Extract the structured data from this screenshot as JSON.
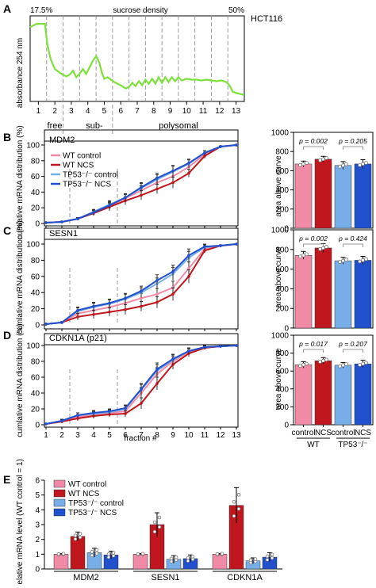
{
  "chart_data": [
    {
      "panel": "A",
      "type": "line",
      "title": "HCT116",
      "top_label_left": "17.5%",
      "top_label_mid": "sucrose density",
      "top_label_right": "50%",
      "ylabel": "absorbance 254 nm",
      "fractions": [
        "1",
        "2",
        "3",
        "4",
        "5",
        "6",
        "7",
        "8",
        "9",
        "10",
        "11",
        "12",
        "13"
      ],
      "regions": [
        "free",
        "sub-",
        "polysomal"
      ],
      "trace_color": "#7ee03a",
      "trace": [
        [
          0,
          0.92
        ],
        [
          0.4,
          0.96
        ],
        [
          0.9,
          0.96
        ],
        [
          1.05,
          0.7
        ],
        [
          1.25,
          0.52
        ],
        [
          1.5,
          0.4
        ],
        [
          1.9,
          0.34
        ],
        [
          2.2,
          0.31
        ],
        [
          2.4,
          0.33
        ],
        [
          2.6,
          0.38
        ],
        [
          2.8,
          0.3
        ],
        [
          3.0,
          0.34
        ],
        [
          3.2,
          0.4
        ],
        [
          3.4,
          0.34
        ],
        [
          3.6,
          0.42
        ],
        [
          3.8,
          0.5
        ],
        [
          4.0,
          0.56
        ],
        [
          4.2,
          0.48
        ],
        [
          4.35,
          0.36
        ],
        [
          4.5,
          0.28
        ],
        [
          4.7,
          0.3
        ],
        [
          4.9,
          0.27
        ],
        [
          5.1,
          0.24
        ],
        [
          5.3,
          0.22
        ],
        [
          5.5,
          0.2
        ],
        [
          5.8,
          0.16
        ],
        [
          6.0,
          0.18
        ],
        [
          6.2,
          0.23
        ],
        [
          6.4,
          0.19
        ],
        [
          6.6,
          0.25
        ],
        [
          6.8,
          0.2
        ],
        [
          7.0,
          0.27
        ],
        [
          7.2,
          0.22
        ],
        [
          7.4,
          0.28
        ],
        [
          7.6,
          0.22
        ],
        [
          7.8,
          0.3
        ],
        [
          8.0,
          0.23
        ],
        [
          8.2,
          0.3
        ],
        [
          8.4,
          0.24
        ],
        [
          8.6,
          0.3
        ],
        [
          8.8,
          0.25
        ],
        [
          9.0,
          0.3
        ],
        [
          9.2,
          0.26
        ],
        [
          9.5,
          0.28
        ],
        [
          9.8,
          0.27
        ],
        [
          10.1,
          0.27
        ],
        [
          10.4,
          0.26
        ],
        [
          10.7,
          0.27
        ],
        [
          11.0,
          0.26
        ],
        [
          11.3,
          0.25
        ],
        [
          11.6,
          0.26
        ],
        [
          11.9,
          0.24
        ],
        [
          12.1,
          0.2
        ],
        [
          12.3,
          0.12
        ],
        [
          12.6,
          0.1
        ],
        [
          13.0,
          0.08
        ]
      ]
    },
    {
      "panel": "B",
      "type": "line",
      "gene": "MDM2",
      "ylabel": "cumlative mRNA distribution (%)",
      "ylim": [
        0,
        100
      ],
      "yticks": [
        0,
        20,
        40,
        60,
        80,
        100
      ],
      "x": [
        1,
        2,
        3,
        4,
        5,
        6,
        7,
        8,
        9,
        10,
        11,
        12,
        13
      ],
      "series": [
        {
          "name": "WT control",
          "color": "#f08aa6",
          "values": [
            1,
            2,
            6,
            14,
            22,
            32,
            42,
            52,
            60,
            72,
            88,
            98,
            100
          ],
          "err": [
            0.5,
            0.8,
            1.5,
            3,
            5,
            5,
            6,
            6,
            7,
            5,
            3,
            1,
            0
          ]
        },
        {
          "name": "WT NCS",
          "color": "#c0161e",
          "values": [
            1,
            2,
            6,
            13,
            21,
            29,
            36,
            44,
            52,
            64,
            86,
            98,
            100
          ],
          "err": [
            0.5,
            0.8,
            1.5,
            3,
            5,
            5,
            6,
            6,
            7,
            5,
            3,
            1,
            0
          ]
        },
        {
          "name": "TP53⁻/⁻ control",
          "color": "#78aee8",
          "values": [
            1,
            2,
            6,
            15,
            24,
            33,
            45,
            56,
            66,
            76,
            90,
            98,
            100
          ],
          "err": [
            0.5,
            0.8,
            1.5,
            3,
            5,
            5,
            6,
            6,
            7,
            5,
            3,
            1,
            0
          ]
        },
        {
          "name": "TP53⁻/⁻ NCS",
          "color": "#2050cc",
          "values": [
            1,
            2,
            6,
            14,
            23,
            33,
            46,
            58,
            67,
            77,
            90,
            98,
            100
          ],
          "err": [
            0.5,
            0.8,
            1.5,
            3,
            5,
            5,
            6,
            6,
            7,
            5,
            3,
            1,
            0
          ]
        }
      ],
      "bars": {
        "ylabel": "area above curve",
        "ylim": [
          0,
          1000
        ],
        "yticks": [
          0,
          200,
          400,
          600,
          800,
          1000
        ],
        "values": [
          670,
          720,
          655,
          670
        ],
        "err": [
          30,
          30,
          40,
          45
        ],
        "p_values": [
          "p = 0.002",
          "p = 0.205"
        ]
      }
    },
    {
      "panel": "C",
      "type": "line",
      "gene": "SESN1",
      "ylabel": "cumlative mRNA distribution (%)",
      "ylim": [
        0,
        100
      ],
      "yticks": [
        0,
        20,
        40,
        60,
        80,
        100
      ],
      "x": [
        1,
        2,
        3,
        4,
        5,
        6,
        7,
        8,
        9,
        10,
        11,
        12,
        13
      ],
      "series": [
        {
          "name": "WT control",
          "color": "#f08aa6",
          "values": [
            1,
            3,
            14,
            18,
            22,
            27,
            33,
            38,
            46,
            70,
            94,
            98,
            100
          ],
          "err": [
            0.5,
            1,
            4,
            5,
            5,
            6,
            6,
            7,
            8,
            8,
            3,
            1,
            0
          ]
        },
        {
          "name": "WT NCS",
          "color": "#c0161e",
          "values": [
            1,
            3,
            10,
            13,
            16,
            19,
            23,
            28,
            38,
            60,
            92,
            98,
            100
          ],
          "err": [
            0.5,
            1,
            4,
            5,
            5,
            6,
            6,
            7,
            8,
            8,
            3,
            1,
            0
          ]
        },
        {
          "name": "TP53⁻/⁻ control",
          "color": "#78aee8",
          "values": [
            1,
            3,
            17,
            22,
            26,
            32,
            40,
            51,
            63,
            83,
            96,
            98,
            100
          ],
          "err": [
            0.5,
            1,
            4,
            5,
            5,
            6,
            6,
            7,
            8,
            8,
            3,
            1,
            0
          ]
        },
        {
          "name": "TP53⁻/⁻ NCS",
          "color": "#2050cc",
          "values": [
            1,
            3,
            18,
            23,
            27,
            33,
            42,
            55,
            66,
            86,
            97,
            98,
            100
          ],
          "err": [
            0.5,
            1,
            4,
            5,
            5,
            6,
            6,
            7,
            8,
            8,
            3,
            1,
            0
          ]
        }
      ],
      "bars": {
        "ylabel": "area above curve",
        "ylim": [
          0,
          1000
        ],
        "yticks": [
          0,
          200,
          400,
          600,
          800,
          1000
        ],
        "values": [
          740,
          815,
          685,
          690
        ],
        "err": [
          40,
          45,
          35,
          40
        ],
        "p_values": [
          "p = 0.002",
          "p = 0.424"
        ]
      }
    },
    {
      "panel": "D",
      "type": "line",
      "gene": "CDKN1A (p21)",
      "ylabel": "cumlative mRNA distribution (%)",
      "ylim": [
        0,
        100
      ],
      "yticks": [
        0,
        20,
        40,
        60,
        80,
        100
      ],
      "x": [
        1,
        2,
        3,
        4,
        5,
        6,
        7,
        8,
        9,
        10,
        11,
        12,
        13
      ],
      "series": [
        {
          "name": "WT control",
          "color": "#f08aa6",
          "values": [
            1,
            5,
            10,
            13,
            15,
            17,
            40,
            64,
            80,
            92,
            98,
            99,
            100
          ],
          "err": [
            0.5,
            2,
            3,
            3,
            3,
            4,
            7,
            8,
            6,
            4,
            2,
            1,
            0
          ]
        },
        {
          "name": "WT NCS",
          "color": "#c0161e",
          "values": [
            1,
            4,
            8,
            11,
            13,
            14,
            27,
            52,
            76,
            90,
            97,
            99,
            100
          ],
          "err": [
            0.5,
            2,
            3,
            3,
            3,
            4,
            7,
            8,
            6,
            4,
            2,
            1,
            0
          ]
        },
        {
          "name": "TP53⁻/⁻ control",
          "color": "#78aee8",
          "values": [
            1,
            5,
            12,
            14,
            16,
            20,
            44,
            68,
            82,
            93,
            98,
            99,
            100
          ],
          "err": [
            0.5,
            2,
            3,
            3,
            3,
            4,
            7,
            8,
            6,
            4,
            2,
            1,
            0
          ]
        },
        {
          "name": "TP53⁻/⁻ NCS",
          "color": "#2050cc",
          "values": [
            1,
            5,
            12,
            15,
            17,
            21,
            45,
            70,
            83,
            93,
            98,
            99,
            100
          ],
          "err": [
            0.5,
            2,
            3,
            3,
            3,
            4,
            7,
            8,
            6,
            4,
            2,
            1,
            0
          ]
        }
      ],
      "xlabel": "fraction #",
      "bars": {
        "ylabel": "area above curve",
        "ylim": [
          0,
          1000
        ],
        "yticks": [
          0,
          200,
          400,
          600,
          800,
          1000
        ],
        "values": [
          670,
          715,
          665,
          680
        ],
        "err": [
          35,
          35,
          30,
          40
        ],
        "p_values": [
          "p = 0.017",
          "p = 0.207"
        ],
        "categories": [
          "control",
          "NCS",
          "control",
          "NCS"
        ],
        "groups": [
          "WT",
          "TP53⁻/⁻"
        ]
      }
    },
    {
      "panel": "E",
      "type": "bar",
      "ylabel": "relative mRNA level (WT control = 1)",
      "ylim": [
        0,
        6
      ],
      "yticks": [
        0,
        1,
        2,
        3,
        4,
        5,
        6
      ],
      "categories": [
        "MDM2",
        "SESN1",
        "CDKN1A"
      ],
      "series": [
        {
          "name": "WT control",
          "color": "#f08aa6",
          "values": [
            1.0,
            1.0,
            1.0
          ],
          "err": [
            0.05,
            0.05,
            0.05
          ]
        },
        {
          "name": "WT NCS",
          "color": "#c0161e",
          "values": [
            2.2,
            3.0,
            4.3
          ],
          "err": [
            0.3,
            0.8,
            1.2
          ]
        },
        {
          "name": "TP53⁻/⁻ control",
          "color": "#78aee8",
          "values": [
            1.1,
            0.65,
            0.55
          ],
          "err": [
            0.3,
            0.25,
            0.2
          ]
        },
        {
          "name": "TP53⁻/⁻ NCS",
          "color": "#2050cc",
          "values": [
            0.95,
            0.7,
            0.8
          ],
          "err": [
            0.25,
            0.25,
            0.3
          ]
        }
      ]
    }
  ],
  "panel_letters": [
    "A",
    "B",
    "C",
    "D",
    "E"
  ],
  "legend": [
    "WT control",
    "WT NCS",
    "TP53⁻/⁻ control",
    "TP53⁻/⁻ NCS"
  ]
}
